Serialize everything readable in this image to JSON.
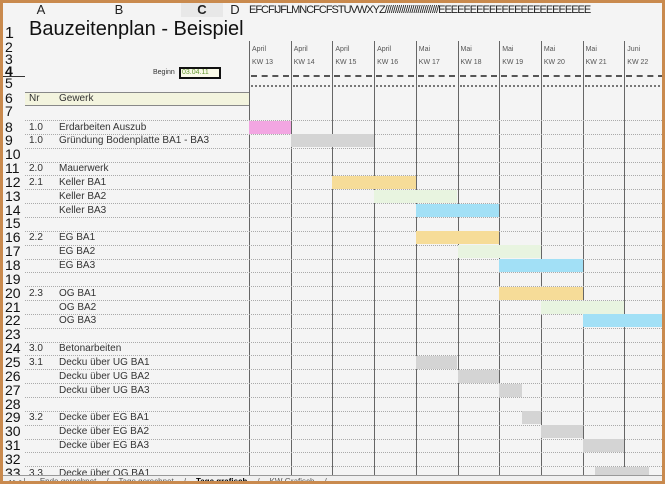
{
  "columns": [
    "A",
    "B",
    "C",
    "D"
  ],
  "column_overflow": "EFCFIJFLMNCFCFSTUVWXYZ//////////////////////////EEEEEEEEEEEEEEEEEEEEEEEE",
  "title": "Bauzeitenplan - Beispiel",
  "begin_label": "Beginn",
  "begin_value": "03.04.11",
  "header": {
    "nr": "Nr",
    "gewerk": "Gewerk"
  },
  "weeks": [
    {
      "month": "April",
      "kw": "KW 13"
    },
    {
      "month": "April",
      "kw": "KW 14"
    },
    {
      "month": "April",
      "kw": "KW 15"
    },
    {
      "month": "April",
      "kw": "KW 16"
    },
    {
      "month": "Mai",
      "kw": "KW 17"
    },
    {
      "month": "Mai",
      "kw": "KW 18"
    },
    {
      "month": "Mai",
      "kw": "KW 19"
    },
    {
      "month": "Mai",
      "kw": "KW 20"
    },
    {
      "month": "Mai",
      "kw": "KW 21"
    },
    {
      "month": "Juni",
      "kw": "KW 22"
    }
  ],
  "header_row_numbers": [
    "1",
    "2",
    "3",
    "4",
    "5",
    "6",
    "7"
  ],
  "rows": [
    {
      "num": "8",
      "nr": "1.0",
      "gewerk": "Erdarbeiten Auszub"
    },
    {
      "num": "9",
      "nr": "1.0",
      "gewerk": "Gründung Bodenplatte BA1 - BA3"
    },
    {
      "num": "10",
      "nr": "",
      "gewerk": ""
    },
    {
      "num": "11",
      "nr": "2.0",
      "gewerk": "Mauerwerk"
    },
    {
      "num": "12",
      "nr": "2.1",
      "gewerk": "Keller BA1"
    },
    {
      "num": "13",
      "nr": "",
      "gewerk": "Keller BA2"
    },
    {
      "num": "14",
      "nr": "",
      "gewerk": "Keller BA3"
    },
    {
      "num": "15",
      "nr": "",
      "gewerk": ""
    },
    {
      "num": "16",
      "nr": "2.2",
      "gewerk": "EG BA1"
    },
    {
      "num": "17",
      "nr": "",
      "gewerk": "EG BA2"
    },
    {
      "num": "18",
      "nr": "",
      "gewerk": "EG BA3"
    },
    {
      "num": "19",
      "nr": "",
      "gewerk": ""
    },
    {
      "num": "20",
      "nr": "2.3",
      "gewerk": "OG BA1"
    },
    {
      "num": "21",
      "nr": "",
      "gewerk": "OG BA2"
    },
    {
      "num": "22",
      "nr": "",
      "gewerk": "OG BA3"
    },
    {
      "num": "23",
      "nr": "",
      "gewerk": ""
    },
    {
      "num": "24",
      "nr": "3.0",
      "gewerk": "Betonarbeiten"
    },
    {
      "num": "25",
      "nr": "3.1",
      "gewerk": "Decku über UG BA1"
    },
    {
      "num": "26",
      "nr": "",
      "gewerk": "Decku über UG BA2"
    },
    {
      "num": "27",
      "nr": "",
      "gewerk": "Decku über UG BA3"
    },
    {
      "num": "28",
      "nr": "",
      "gewerk": ""
    },
    {
      "num": "29",
      "nr": "3.2",
      "gewerk": "Decke über EG BA1"
    },
    {
      "num": "30",
      "nr": "",
      "gewerk": "Decke über EG BA2"
    },
    {
      "num": "31",
      "nr": "",
      "gewerk": "Decke über EG BA3"
    },
    {
      "num": "32",
      "nr": "",
      "gewerk": ""
    },
    {
      "num": "33",
      "nr": "3.3",
      "gewerk": "Decke über OG BA1"
    }
  ],
  "bars": [
    {
      "row": "8",
      "start_kw": 13,
      "weeks": 1,
      "color": "#f2a6e2"
    },
    {
      "row": "9",
      "start_kw": 14,
      "weeks": 2,
      "color": "#d4d4d4"
    },
    {
      "row": "12",
      "start_kw": 15,
      "weeks": 2,
      "color": "#f6dc98"
    },
    {
      "row": "13",
      "start_kw": 16,
      "weeks": 2,
      "color": "#e8f4e0"
    },
    {
      "row": "14",
      "start_kw": 17,
      "weeks": 2,
      "color": "#a2e0f6"
    },
    {
      "row": "16",
      "start_kw": 17,
      "weeks": 2,
      "color": "#f6dc98"
    },
    {
      "row": "17",
      "start_kw": 18,
      "weeks": 2,
      "color": "#e8f4e0"
    },
    {
      "row": "18",
      "start_kw": 19,
      "weeks": 2,
      "color": "#a2e0f6"
    },
    {
      "row": "20",
      "start_kw": 19,
      "weeks": 2,
      "color": "#f6dc98"
    },
    {
      "row": "21",
      "start_kw": 20,
      "weeks": 2,
      "color": "#e8f4e0"
    },
    {
      "row": "22",
      "start_kw": 21,
      "weeks": 2,
      "color": "#a2e0f6"
    },
    {
      "row": "25",
      "start_kw": 17,
      "weeks": 1,
      "color": "#d4d4d4"
    },
    {
      "row": "26",
      "start_kw": 18,
      "weeks": 1,
      "color": "#d4d4d4"
    },
    {
      "row": "27",
      "start_kw": 19,
      "weeks": 0.55,
      "color": "#d4d4d4"
    },
    {
      "row": "29",
      "start_kw": 19.55,
      "weeks": 0.45,
      "color": "#d4d4d4"
    },
    {
      "row": "30",
      "start_kw": 20,
      "weeks": 1,
      "color": "#d4d4d4"
    },
    {
      "row": "31",
      "start_kw": 21,
      "weeks": 1,
      "color": "#d4d4d4"
    },
    {
      "row": "33",
      "start_kw": 21.3,
      "weeks": 1.3,
      "color": "#d4d4d4"
    }
  ],
  "sheet_tabs": [
    {
      "label": "Ende gerechnet",
      "active": false
    },
    {
      "label": "Tage gerechnet",
      "active": false
    },
    {
      "label": "Tage grafisch",
      "active": true
    },
    {
      "label": "KW Grafisch",
      "active": false
    }
  ]
}
